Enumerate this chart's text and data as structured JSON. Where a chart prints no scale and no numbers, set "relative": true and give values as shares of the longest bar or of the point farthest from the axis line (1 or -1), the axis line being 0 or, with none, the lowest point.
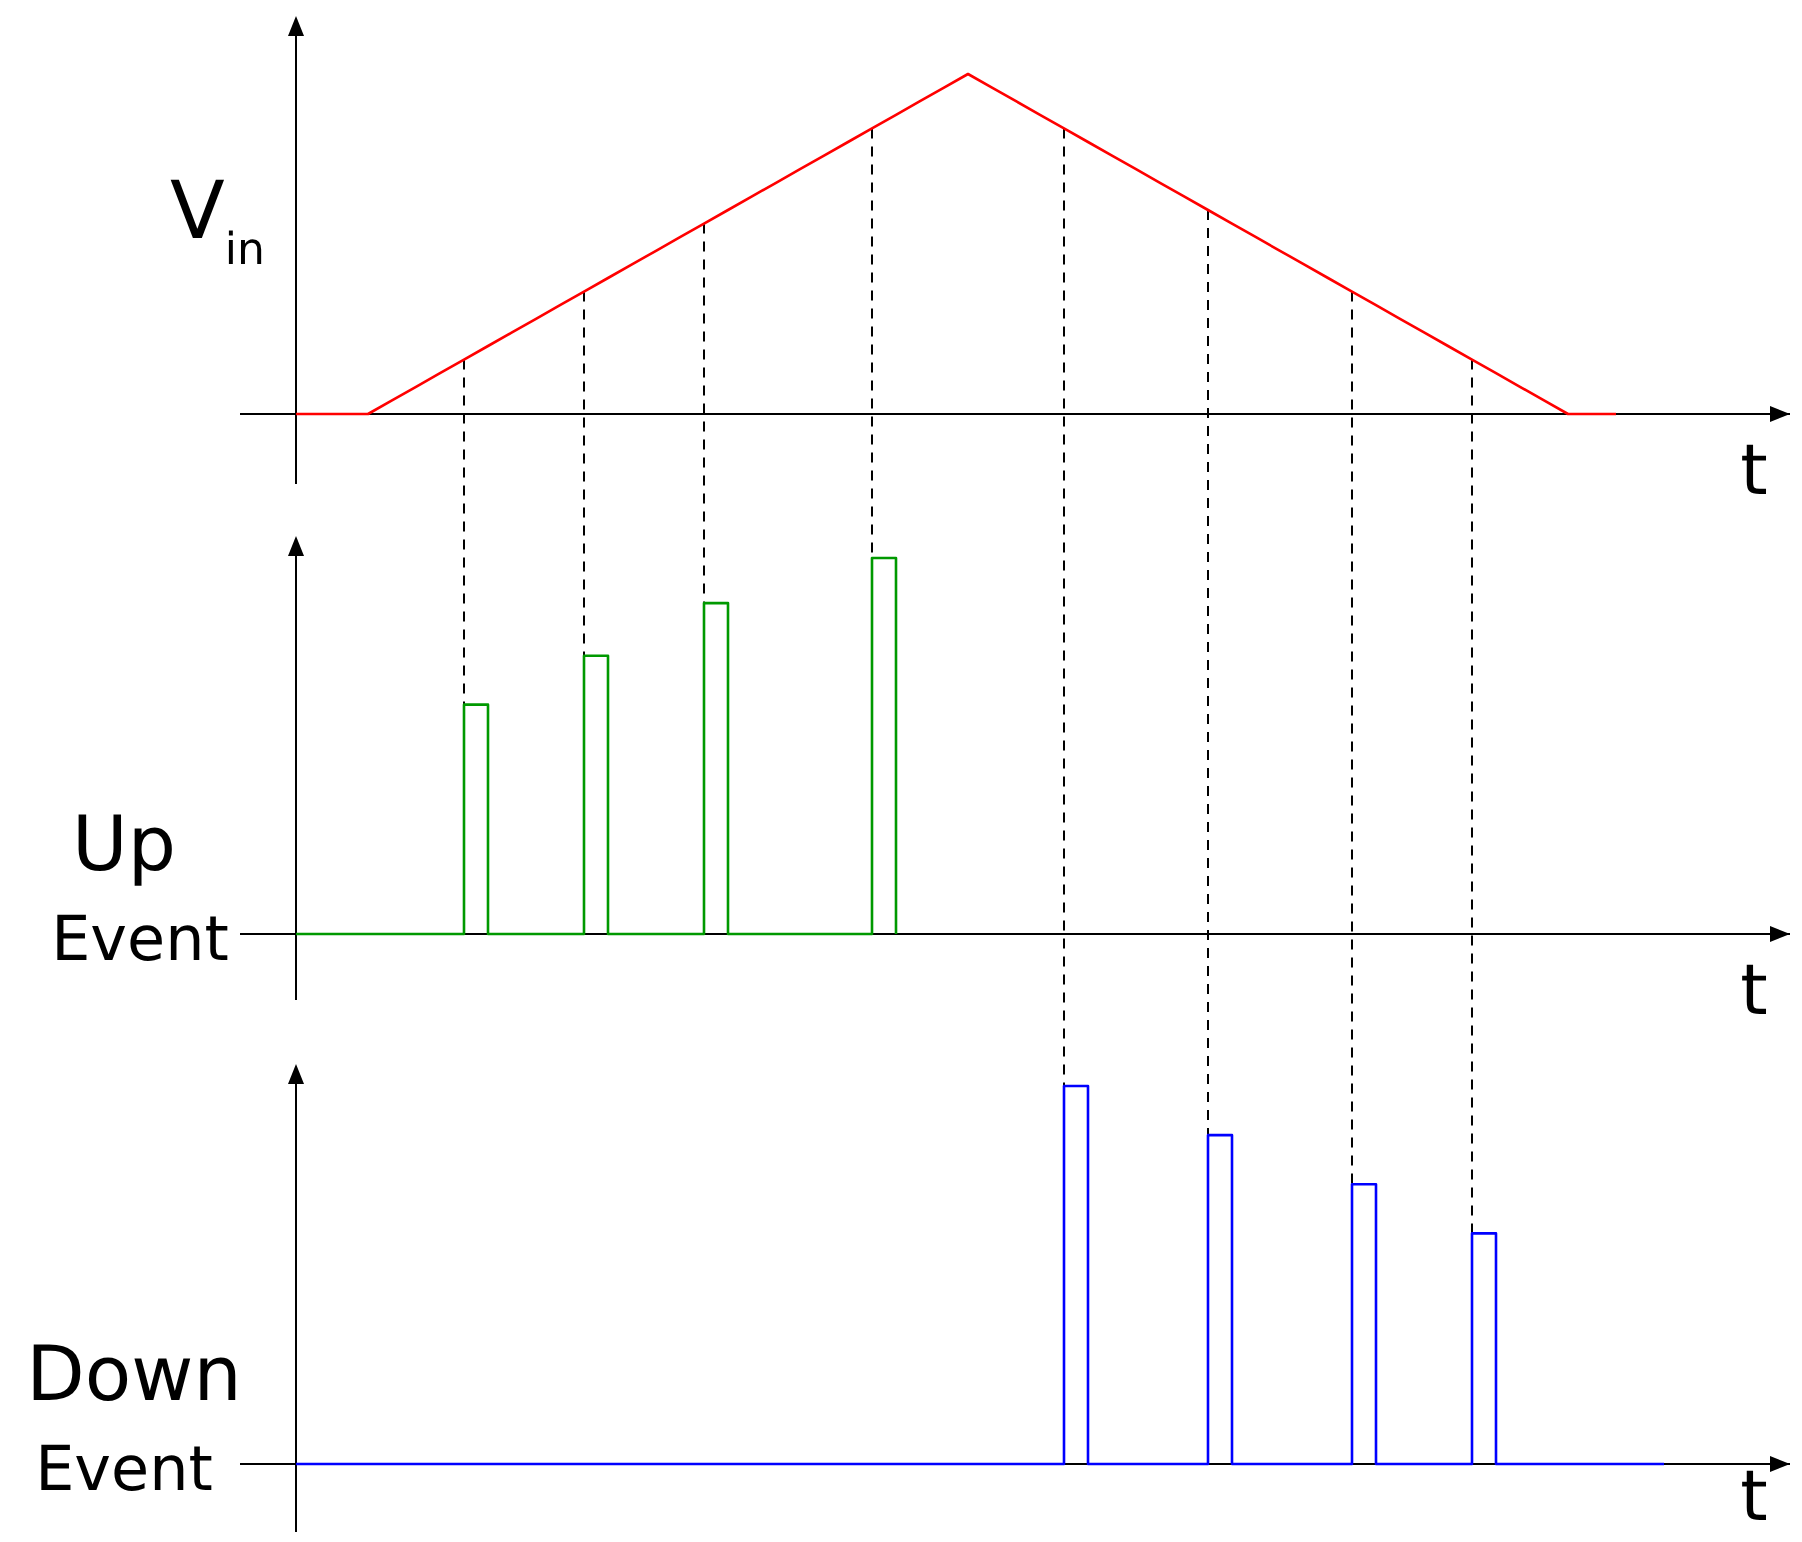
{
  "chart_data": [
    {
      "type": "line",
      "relative": true,
      "grid": "x",
      "ylabel": "V$_{in}$",
      "xlabel": "t",
      "categories": [
        null,
        null,
        null,
        null,
        null,
        null,
        null,
        null,
        null,
        null,
        null,
        null,
        null,
        null,
        null,
        null,
        null,
        null,
        null,
        null,
        null,
        null,
        null,
        null,
        null,
        null,
        null,
        null,
        null,
        null,
        null,
        null,
        null,
        null,
        null,
        null,
        null,
        null,
        null,
        null,
        null,
        null,
        null,
        null,
        null,
        null,
        null,
        null,
        null,
        null,
        null,
        null,
        null,
        null,
        null,
        null,
        null,
        null,
        null,
        null,
        null,
        null,
        null
      ],
      "series": [
        {
          "color": "#ff0000",
          "values": [
            0,
            0,
            0,
            0,
            0.04,
            0.08,
            0.12,
            0.16,
            0.2,
            0.24,
            0.28,
            0.32,
            0.36,
            0.4,
            0.44,
            0.48,
            0.52,
            0.56,
            0.6,
            0.64,
            0.68,
            0.72,
            0.76,
            0.8,
            0.84,
            0.88,
            0.92,
            0.96,
            1,
            0.96,
            0.92,
            0.88,
            0.84,
            0.8,
            0.76,
            0.72,
            0.68,
            0.64,
            0.6,
            0.56,
            0.52,
            0.48,
            0.44,
            0.4,
            0.36,
            0.32,
            0.28,
            0.24,
            0.2,
            0.16,
            0.12,
            0.08,
            0.04,
            0,
            0,
            0,
            null,
            null,
            null,
            null,
            null,
            null,
            null
          ]
        }
      ]
    },
    {
      "type": "step",
      "relative": true,
      "grid": "x",
      "ylabel": "Up Event",
      "xlabel": "t",
      "categories": [
        null,
        null,
        null,
        null,
        null,
        null,
        null,
        null,
        null,
        null,
        null,
        null,
        null,
        null,
        null,
        null,
        null,
        null,
        null,
        null,
        null,
        null,
        null,
        null,
        null,
        null,
        null,
        null,
        null,
        null,
        null,
        null,
        null,
        null,
        null,
        null,
        null,
        null,
        null,
        null,
        null,
        null,
        null,
        null,
        null,
        null,
        null,
        null,
        null,
        null,
        null,
        null,
        null,
        null,
        null,
        null,
        null,
        null,
        null,
        null,
        null,
        null,
        null
      ],
      "series": [
        {
          "color": "#009900",
          "values": [
            0,
            0,
            0,
            0,
            0,
            0,
            0,
            0.61,
            0,
            0,
            0,
            0,
            0.74,
            0,
            0,
            0,
            0,
            0.88,
            0,
            0,
            0,
            0,
            0,
            0,
            1,
            0,
            null,
            null,
            null,
            null,
            null,
            null,
            null,
            null,
            null,
            null,
            null,
            null,
            null,
            null,
            null,
            null,
            null,
            null,
            null,
            null,
            null,
            null,
            null,
            null,
            null,
            null,
            null,
            null,
            null,
            null,
            null,
            null,
            null,
            null,
            null,
            null,
            null
          ]
        }
      ]
    },
    {
      "type": "step",
      "relative": true,
      "grid": "x",
      "ylabel": "Down Event",
      "xlabel": "t",
      "categories": [
        null,
        null,
        null,
        null,
        null,
        null,
        null,
        null,
        null,
        null,
        null,
        null,
        null,
        null,
        null,
        null,
        null,
        null,
        null,
        null,
        null,
        null,
        null,
        null,
        null,
        null,
        null,
        null,
        null,
        null,
        null,
        null,
        null,
        null,
        null,
        null,
        null,
        null,
        null,
        null,
        null,
        null,
        null,
        null,
        null,
        null,
        null,
        null,
        null,
        null,
        null,
        null,
        null,
        null,
        null,
        null,
        null,
        null,
        null,
        null,
        null,
        null,
        null
      ],
      "series": [
        {
          "color": "#0000ff",
          "values": [
            0,
            0,
            0,
            0,
            0,
            0,
            0,
            0,
            0,
            0,
            0,
            0,
            0,
            0,
            0,
            0,
            0,
            0,
            0,
            0,
            0,
            0,
            0,
            0,
            0,
            0,
            0,
            0,
            0,
            0,
            0,
            0,
            1,
            0,
            0,
            0,
            0,
            0,
            0.87,
            0,
            0,
            0,
            0,
            0,
            0.74,
            0,
            0,
            0,
            0,
            0.61,
            0,
            0,
            0,
            0,
            0,
            0,
            0,
            0,
            null,
            null,
            null,
            null,
            null
          ]
        }
      ]
    }
  ]
}
